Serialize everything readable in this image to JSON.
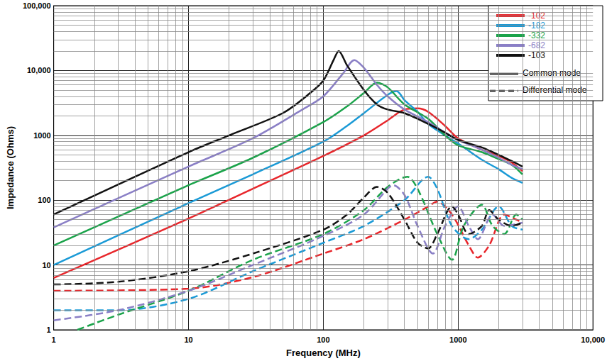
{
  "chart_data": {
    "type": "line",
    "x_label": "Frequency (MHz)",
    "y_label": "Impedance (Ohms)",
    "log": true,
    "grid": true,
    "legend": "top-right",
    "xlim": [
      1,
      10000
    ],
    "xticks": [
      1,
      10,
      100,
      1000,
      {
        "value": 10000,
        "label": "10,000"
      }
    ],
    "ylim": [
      1,
      100000
    ],
    "yticks": [
      1,
      10,
      100,
      1000,
      {
        "value": 10000,
        "label": "10,000"
      },
      {
        "value": 100000,
        "label": "100,000"
      }
    ],
    "line_styles": [
      {
        "name": "Common mode",
        "line_style": "solid"
      },
      {
        "name": "Differential mode",
        "line_style": "dashed"
      }
    ],
    "series": [
      {
        "name": "-102",
        "color": "#e8262b",
        "line_style": "solid",
        "x": [
          1,
          10,
          30,
          100,
          200,
          300,
          400,
          500,
          600,
          800,
          1000,
          1500,
          2000,
          2500,
          3000
        ],
        "values": [
          6.3,
          52,
          150,
          480,
          1000,
          1700,
          2500,
          2600,
          2300,
          1400,
          900,
          600,
          480,
          380,
          280
        ]
      },
      {
        "name": "-182",
        "color": "#1a9ad6",
        "line_style": "solid",
        "x": [
          1,
          10,
          30,
          100,
          150,
          200,
          300,
          350,
          400,
          500,
          600,
          800,
          1000,
          1500,
          2000,
          2500,
          3000
        ],
        "values": [
          10,
          90,
          250,
          800,
          1400,
          2200,
          4200,
          4800,
          3500,
          2300,
          1500,
          1000,
          750,
          420,
          300,
          220,
          185
        ]
      },
      {
        "name": "-332",
        "color": "#1aa34a",
        "line_style": "solid",
        "x": [
          1,
          10,
          30,
          100,
          150,
          200,
          250,
          300,
          400,
          600,
          800,
          1000,
          1500,
          2000,
          2500,
          3000
        ],
        "values": [
          20,
          170,
          450,
          1600,
          2800,
          4500,
          6500,
          5500,
          3000,
          1800,
          1000,
          700,
          550,
          430,
          350,
          250
        ]
      },
      {
        "name": "-682",
        "color": "#8a7fc6",
        "line_style": "solid",
        "x": [
          1,
          10,
          30,
          70,
          100,
          140,
          170,
          200,
          250,
          300,
          400,
          600,
          800,
          1000,
          1500,
          2000,
          2500,
          3000
        ],
        "values": [
          38,
          330,
          900,
          2500,
          4000,
          9000,
          14500,
          11000,
          6000,
          4000,
          2500,
          1600,
          1100,
          850,
          600,
          450,
          350,
          300
        ]
      },
      {
        "name": "-103",
        "color": "#111111",
        "line_style": "solid",
        "x": [
          1,
          10,
          20,
          50,
          80,
          100,
          120,
          130,
          150,
          200,
          250,
          300,
          400,
          600,
          800,
          1000,
          1500,
          2000,
          2500,
          3000
        ],
        "values": [
          60,
          550,
          1000,
          2200,
          4500,
          7000,
          15000,
          20000,
          12000,
          5000,
          3000,
          2500,
          2200,
          1500,
          1100,
          850,
          650,
          500,
          400,
          330
        ]
      },
      {
        "name": "-102",
        "color": "#e8262b",
        "line_style": "dashed",
        "x": [
          1,
          10,
          30,
          100,
          200,
          400,
          600,
          700,
          900,
          1200,
          1400,
          1700,
          2200,
          2700,
          3000
        ],
        "values": [
          4,
          4.3,
          6.5,
          15,
          25,
          50,
          80,
          95,
          60,
          20,
          13,
          20,
          60,
          50,
          45
        ]
      },
      {
        "name": "-182",
        "color": "#1a9ad6",
        "line_style": "dashed",
        "x": [
          1,
          3,
          10,
          30,
          100,
          200,
          400,
          600,
          700,
          900,
          1200,
          1500,
          2000,
          2500,
          3000
        ],
        "values": [
          2,
          2,
          3,
          8,
          22,
          40,
          100,
          230,
          150,
          40,
          25,
          35,
          80,
          40,
          35
        ]
      },
      {
        "name": "-332",
        "color": "#1aa34a",
        "line_style": "dashed",
        "x": [
          1.5,
          3,
          10,
          30,
          100,
          200,
          300,
          420,
          500,
          700,
          900,
          1100,
          1500,
          1800,
          2200,
          2700,
          3000
        ],
        "values": [
          1,
          1.7,
          4,
          12,
          30,
          70,
          160,
          230,
          150,
          30,
          12,
          40,
          85,
          40,
          30,
          60,
          50
        ]
      },
      {
        "name": "-682",
        "color": "#8a7fc6",
        "line_style": "dashed",
        "x": [
          1,
          3,
          10,
          30,
          100,
          200,
          300,
          330,
          400,
          500,
          650,
          800,
          1000,
          1200,
          1400,
          1800,
          2200,
          3000
        ],
        "values": [
          1.4,
          2,
          4,
          10,
          28,
          60,
          150,
          170,
          120,
          40,
          15,
          40,
          80,
          40,
          25,
          60,
          40,
          45
        ]
      },
      {
        "name": "-103",
        "color": "#111111",
        "line_style": "dashed",
        "x": [
          1,
          3,
          10,
          30,
          100,
          150,
          200,
          250,
          300,
          400,
          500,
          600,
          700,
          900,
          1000,
          1200,
          1500,
          1700,
          2000,
          2500,
          3000
        ],
        "values": [
          5,
          5.5,
          8,
          15,
          35,
          60,
          110,
          160,
          130,
          50,
          22,
          18,
          30,
          80,
          60,
          30,
          40,
          70,
          50,
          40,
          45
        ]
      }
    ]
  }
}
